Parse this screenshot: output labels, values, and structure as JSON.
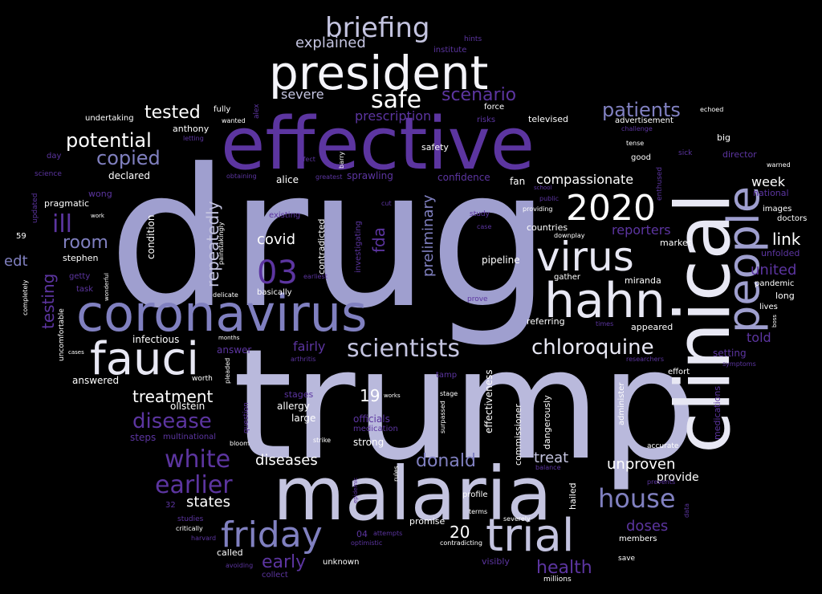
{
  "background": "#000000",
  "palette": {
    "white": "#ffffff",
    "light": "#e8e8f4",
    "lavender": "#c4c4e0",
    "periwinkle": "#9f9fcf",
    "mid": "#8080c0",
    "purple": "#5c35a0",
    "deep": "#3c1f78",
    "dim": "#4a3a8a"
  },
  "words": [
    {
      "text": "drug",
      "color": "#9f9fcf"
    },
    {
      "text": "trump",
      "color": "#b9b9dc"
    },
    {
      "text": "effective",
      "color": "#5c35a0"
    },
    {
      "text": "malaria",
      "color": "#c4c4e0"
    },
    {
      "text": "clinical",
      "color": "#e8e8f4"
    },
    {
      "text": "president",
      "color": "#f4f4fa"
    },
    {
      "text": "coronavirus",
      "color": "#8080c0"
    },
    {
      "text": "hahn",
      "color": "#e8e8f4"
    },
    {
      "text": "fauci",
      "color": "#e8e8f4"
    },
    {
      "text": "people",
      "color": "#9f9fcf"
    },
    {
      "text": "virus",
      "color": "#e8e8f4"
    },
    {
      "text": "trial",
      "color": "#c4c4e0"
    },
    {
      "text": "friday",
      "color": "#8080c0"
    },
    {
      "text": "2020",
      "color": "#ffffff"
    },
    {
      "text": "briefing",
      "color": "#c4c4e0"
    },
    {
      "text": "safe",
      "color": "#ffffff"
    },
    {
      "text": "scientists",
      "color": "#c4c4e0"
    },
    {
      "text": "chloroquine",
      "color": "#e8e8f4"
    },
    {
      "text": "03",
      "color": "#5c35a0"
    },
    {
      "text": "white",
      "color": "#5c35a0"
    },
    {
      "text": "earlier",
      "color": "#5c35a0"
    },
    {
      "text": "house",
      "color": "#8080c0"
    },
    {
      "text": "disease",
      "color": "#5c35a0"
    },
    {
      "text": "patients",
      "color": "#8080c0"
    },
    {
      "text": "scenario",
      "color": "#5c35a0"
    },
    {
      "text": "tested",
      "color": "#ffffff"
    },
    {
      "text": "potential",
      "color": "#ffffff"
    },
    {
      "text": "copied",
      "color": "#8080c0"
    },
    {
      "text": "ill",
      "color": "#5c35a0"
    },
    {
      "text": "room",
      "color": "#8080c0"
    },
    {
      "text": "edt",
      "color": "#8080c0"
    },
    {
      "text": "testing",
      "color": "#5c35a0"
    },
    {
      "text": "repeatedly",
      "color": "#c4c4e0"
    },
    {
      "text": "covid",
      "color": "#ffffff"
    },
    {
      "text": "fda",
      "color": "#5c35a0"
    },
    {
      "text": "preliminary",
      "color": "#8080c0"
    },
    {
      "text": "treatment",
      "color": "#ffffff"
    },
    {
      "text": "diseases",
      "color": "#ffffff"
    },
    {
      "text": "donald",
      "color": "#8080c0"
    },
    {
      "text": "treat",
      "color": "#c4c4e0"
    },
    {
      "text": "unproven",
      "color": "#ffffff"
    },
    {
      "text": "provide",
      "color": "#ffffff"
    },
    {
      "text": "doses",
      "color": "#5c35a0"
    },
    {
      "text": "health",
      "color": "#5c35a0"
    },
    {
      "text": "early",
      "color": "#5c35a0"
    },
    {
      "text": "states",
      "color": "#ffffff"
    },
    {
      "text": "20",
      "color": "#ffffff"
    },
    {
      "text": "19",
      "color": "#ffffff"
    },
    {
      "text": "link",
      "color": "#ffffff"
    },
    {
      "text": "united",
      "color": "#5c35a0"
    },
    {
      "text": "week",
      "color": "#ffffff"
    },
    {
      "text": "reporters",
      "color": "#5c35a0"
    },
    {
      "text": "compassionate",
      "color": "#ffffff"
    },
    {
      "text": "explained",
      "color": "#c4c4e0"
    },
    {
      "text": "severe",
      "color": "#c4c4e0"
    },
    {
      "text": "prescription",
      "color": "#5c35a0"
    },
    {
      "text": "told",
      "color": "#5c35a0"
    },
    {
      "text": "fairly",
      "color": "#5c35a0"
    },
    {
      "text": "setting",
      "color": "#5c35a0"
    },
    {
      "text": "pipeline",
      "color": "#ffffff"
    },
    {
      "text": "condition",
      "color": "#ffffff"
    },
    {
      "text": "infectious",
      "color": "#ffffff"
    },
    {
      "text": "answer",
      "color": "#5c35a0"
    },
    {
      "text": "answered",
      "color": "#ffffff"
    },
    {
      "text": "ollstein",
      "color": "#ffffff"
    },
    {
      "text": "allergy",
      "color": "#ffffff"
    },
    {
      "text": "large",
      "color": "#ffffff"
    },
    {
      "text": "officials",
      "color": "#5c35a0"
    },
    {
      "text": "medication",
      "color": "#5c35a0"
    },
    {
      "text": "strong",
      "color": "#ffffff"
    },
    {
      "text": "stages",
      "color": "#5c35a0"
    },
    {
      "text": "steps",
      "color": "#5c35a0"
    },
    {
      "text": "multinational",
      "color": "#5c35a0"
    },
    {
      "text": "effectiveness",
      "color": "#ffffff"
    },
    {
      "text": "commissioner",
      "color": "#ffffff"
    },
    {
      "text": "dangerously",
      "color": "#ffffff"
    },
    {
      "text": "hailed",
      "color": "#ffffff"
    },
    {
      "text": "administer",
      "color": "#ffffff"
    },
    {
      "text": "medications",
      "color": "#5c35a0"
    },
    {
      "text": "contradicted",
      "color": "#ffffff"
    },
    {
      "text": "investigating",
      "color": "#5c35a0"
    },
    {
      "text": "alice",
      "color": "#ffffff"
    },
    {
      "text": "sprawling",
      "color": "#5c35a0"
    },
    {
      "text": "confidence",
      "color": "#5c35a0"
    },
    {
      "text": "fan",
      "color": "#ffffff"
    },
    {
      "text": "safety",
      "color": "#ffffff"
    },
    {
      "text": "stephen",
      "color": "#ffffff"
    },
    {
      "text": "pragmatic",
      "color": "#ffffff"
    },
    {
      "text": "wong",
      "color": "#5c35a0"
    },
    {
      "text": "declared",
      "color": "#ffffff"
    },
    {
      "text": "anthony",
      "color": "#ffffff"
    },
    {
      "text": "undertaking",
      "color": "#ffffff"
    },
    {
      "text": "fully",
      "color": "#ffffff"
    },
    {
      "text": "wanted",
      "color": "#ffffff"
    },
    {
      "text": "alex",
      "color": "#5c35a0"
    },
    {
      "text": "force",
      "color": "#ffffff"
    },
    {
      "text": "risks",
      "color": "#5c35a0"
    },
    {
      "text": "televised",
      "color": "#ffffff"
    },
    {
      "text": "advertisement",
      "color": "#ffffff"
    },
    {
      "text": "challenge",
      "color": "#5c35a0"
    },
    {
      "text": "echoed",
      "color": "#ffffff"
    },
    {
      "text": "big",
      "color": "#ffffff"
    },
    {
      "text": "tense",
      "color": "#ffffff"
    },
    {
      "text": "director",
      "color": "#5c35a0"
    },
    {
      "text": "warned",
      "color": "#ffffff"
    },
    {
      "text": "good",
      "color": "#ffffff"
    },
    {
      "text": "sick",
      "color": "#5c35a0"
    },
    {
      "text": "enthused",
      "color": "#5c35a0"
    },
    {
      "text": "national",
      "color": "#5c35a0"
    },
    {
      "text": "images",
      "color": "#ffffff"
    },
    {
      "text": "doctors",
      "color": "#ffffff"
    },
    {
      "text": "market",
      "color": "#ffffff"
    },
    {
      "text": "unfolded",
      "color": "#5c35a0"
    },
    {
      "text": "pandemic",
      "color": "#ffffff"
    },
    {
      "text": "long",
      "color": "#ffffff"
    },
    {
      "text": "lives",
      "color": "#ffffff"
    },
    {
      "text": "boss",
      "color": "#ffffff"
    },
    {
      "text": "symptoms",
      "color": "#5c35a0"
    },
    {
      "text": "researchers",
      "color": "#5c35a0"
    },
    {
      "text": "effort",
      "color": "#ffffff"
    },
    {
      "text": "accurate",
      "color": "#ffffff"
    },
    {
      "text": "prevents",
      "color": "#5c35a0"
    },
    {
      "text": "data",
      "color": "#5c35a0"
    },
    {
      "text": "balance",
      "color": "#5c35a0"
    },
    {
      "text": "miranda",
      "color": "#ffffff"
    },
    {
      "text": "gather",
      "color": "#ffffff"
    },
    {
      "text": "appeared",
      "color": "#ffffff"
    },
    {
      "text": "referring",
      "color": "#ffffff"
    },
    {
      "text": "times",
      "color": "#5c35a0"
    },
    {
      "text": "countries",
      "color": "#ffffff"
    },
    {
      "text": "downplay",
      "color": "#ffffff"
    },
    {
      "text": "providing",
      "color": "#ffffff"
    },
    {
      "text": "public",
      "color": "#5c35a0"
    },
    {
      "text": "school",
      "color": "#5c35a0"
    },
    {
      "text": "study",
      "color": "#5c35a0"
    },
    {
      "text": "case",
      "color": "#5c35a0"
    },
    {
      "text": "prove",
      "color": "#5c35a0"
    },
    {
      "text": "cut",
      "color": "#5c35a0"
    },
    {
      "text": "existing",
      "color": "#5c35a0"
    },
    {
      "text": "earliest",
      "color": "#5c35a0"
    },
    {
      "text": "basically",
      "color": "#ffffff"
    },
    {
      "text": "delicate",
      "color": "#ffffff"
    },
    {
      "text": "painstakingly",
      "color": "#ffffff"
    },
    {
      "text": "obtaining",
      "color": "#5c35a0"
    },
    {
      "text": "greatest",
      "color": "#5c35a0"
    },
    {
      "text": "barry",
      "color": "#ffffff"
    },
    {
      "text": "affect",
      "color": "#5c35a0"
    },
    {
      "text": "letting",
      "color": "#5c35a0"
    },
    {
      "text": "day",
      "color": "#5c35a0"
    },
    {
      "text": "science",
      "color": "#5c35a0"
    },
    {
      "text": "updated",
      "color": "#5c35a0"
    },
    {
      "text": "59",
      "color": "#ffffff"
    },
    {
      "text": "work",
      "color": "#ffffff"
    },
    {
      "text": "getty",
      "color": "#5c35a0"
    },
    {
      "text": "task",
      "color": "#5c35a0"
    },
    {
      "text": "wonderful",
      "color": "#ffffff"
    },
    {
      "text": "completely",
      "color": "#ffffff"
    },
    {
      "text": "uncomfortable",
      "color": "#ffffff"
    },
    {
      "text": "cases",
      "color": "#ffffff"
    },
    {
      "text": "months",
      "color": "#ffffff"
    },
    {
      "text": "arthritis",
      "color": "#5c35a0"
    },
    {
      "text": "worth",
      "color": "#ffffff"
    },
    {
      "text": "pleaded",
      "color": "#ffffff"
    },
    {
      "text": "question",
      "color": "#5c35a0"
    },
    {
      "text": "tamp",
      "color": "#5c35a0"
    },
    {
      "text": "works",
      "color": "#ffffff"
    },
    {
      "text": "stage",
      "color": "#ffffff"
    },
    {
      "text": "surpassed",
      "color": "#ffffff"
    },
    {
      "text": "bloom",
      "color": "#ffffff"
    },
    {
      "text": "strike",
      "color": "#ffffff"
    },
    {
      "text": "rules",
      "color": "#ffffff"
    },
    {
      "text": "epidemic",
      "color": "#5c35a0"
    },
    {
      "text": "promise",
      "color": "#ffffff"
    },
    {
      "text": "profile",
      "color": "#ffffff"
    },
    {
      "text": "terms",
      "color": "#ffffff"
    },
    {
      "text": "severely",
      "color": "#ffffff"
    },
    {
      "text": "contradicting",
      "color": "#ffffff"
    },
    {
      "text": "attempts",
      "color": "#5c35a0"
    },
    {
      "text": "optimistic",
      "color": "#5c35a0"
    },
    {
      "text": "visibly",
      "color": "#5c35a0"
    },
    {
      "text": "unknown",
      "color": "#ffffff"
    },
    {
      "text": "collect",
      "color": "#5c35a0"
    },
    {
      "text": "avoiding",
      "color": "#5c35a0"
    },
    {
      "text": "called",
      "color": "#ffffff"
    },
    {
      "text": "critically",
      "color": "#ffffff"
    },
    {
      "text": "harvard",
      "color": "#5c35a0"
    },
    {
      "text": "studies",
      "color": "#5c35a0"
    },
    {
      "text": "32",
      "color": "#5c35a0"
    },
    {
      "text": "04",
      "color": "#5c35a0"
    },
    {
      "text": "millions",
      "color": "#ffffff"
    },
    {
      "text": "members",
      "color": "#ffffff"
    },
    {
      "text": "save",
      "color": "#ffffff"
    },
    {
      "text": "hints",
      "color": "#5c35a0"
    },
    {
      "text": "institute",
      "color": "#5c35a0"
    }
  ]
}
